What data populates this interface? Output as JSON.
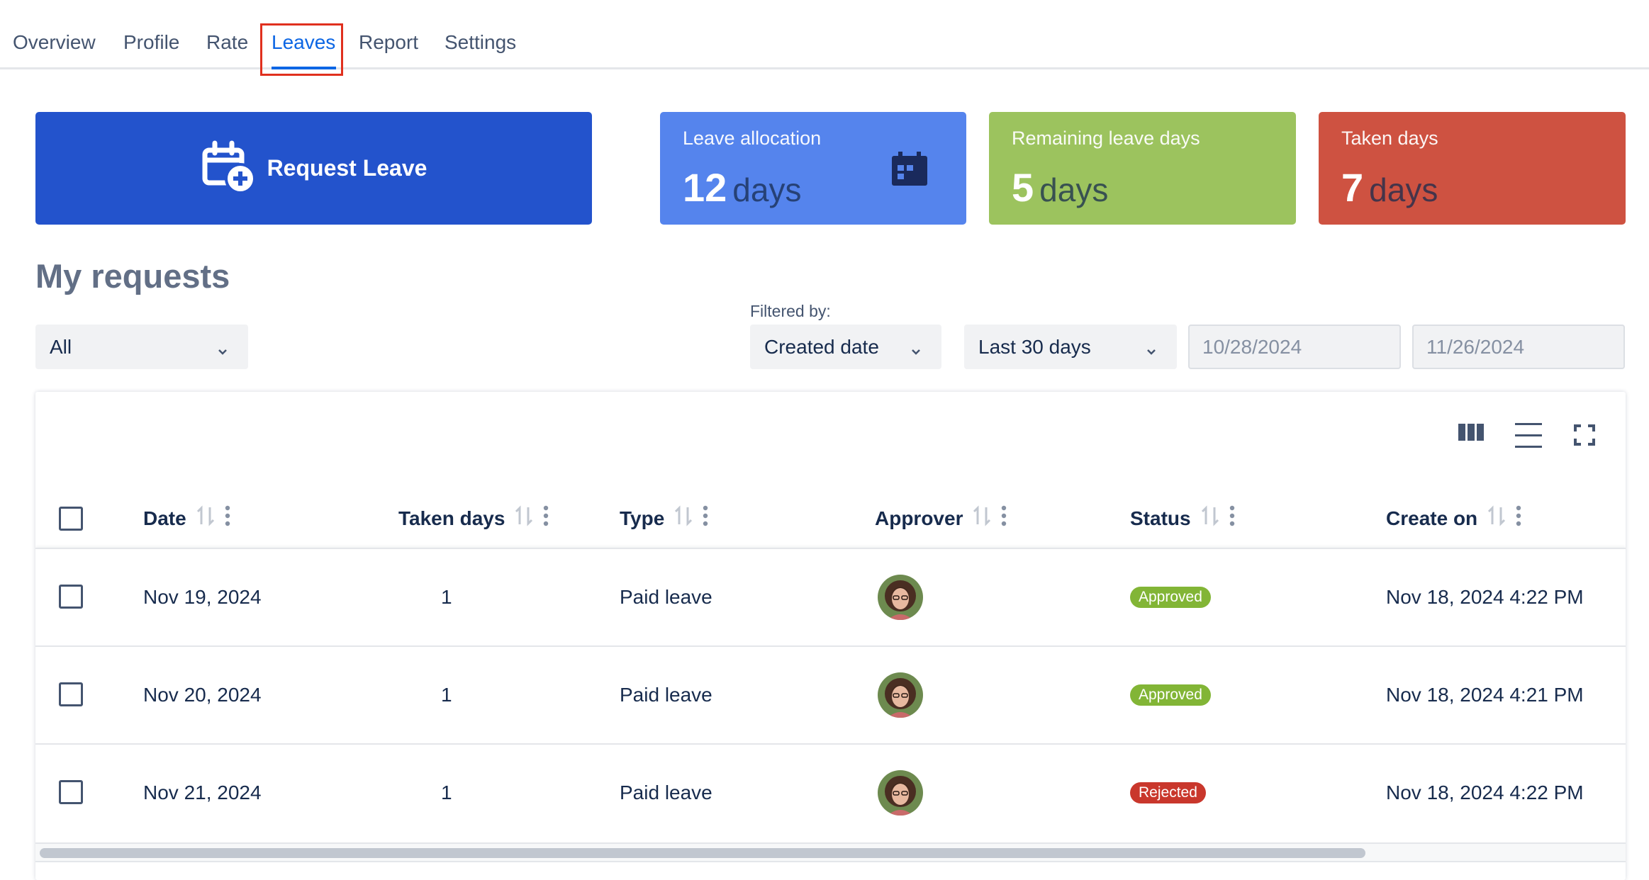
{
  "tabs": [
    {
      "label": "Overview"
    },
    {
      "label": "Profile"
    },
    {
      "label": "Rate"
    },
    {
      "label": "Leaves"
    },
    {
      "label": "Report"
    },
    {
      "label": "Settings"
    }
  ],
  "active_tab": "Leaves",
  "request_button": {
    "label": "Request Leave",
    "icon": "calendar-plus-icon"
  },
  "stats": {
    "allocation": {
      "label": "Leave allocation",
      "value": "12",
      "unit": "days",
      "icon": "calendar-icon",
      "color": "#5584ed"
    },
    "remaining": {
      "label": "Remaining leave days",
      "value": "5",
      "unit": "days",
      "color": "#9cc35e"
    },
    "taken": {
      "label": "Taken days",
      "value": "7",
      "unit": "days",
      "color": "#ce5241"
    }
  },
  "section_title": "My requests",
  "filters": {
    "status_select": "All",
    "filtered_by_label": "Filtered by:",
    "field_select": "Created date",
    "range_select": "Last 30 days",
    "start_date": "10/28/2024",
    "end_date": "11/26/2024"
  },
  "table": {
    "toolbar_icons": [
      "columns-icon",
      "density-icon",
      "fullscreen-icon"
    ],
    "columns": [
      "Date",
      "Taken days",
      "Type",
      "Approver",
      "Status",
      "Create on"
    ],
    "rows": [
      {
        "date": "Nov 19, 2024",
        "taken_days": "1",
        "type": "Paid leave",
        "status": "Approved",
        "created_on": "Nov 18, 2024 4:22 PM"
      },
      {
        "date": "Nov 20, 2024",
        "taken_days": "1",
        "type": "Paid leave",
        "status": "Approved",
        "created_on": "Nov 18, 2024 4:21 PM"
      },
      {
        "date": "Nov 21, 2024",
        "taken_days": "1",
        "type": "Paid leave",
        "status": "Rejected",
        "created_on": "Nov 18, 2024 4:22 PM"
      }
    ]
  }
}
